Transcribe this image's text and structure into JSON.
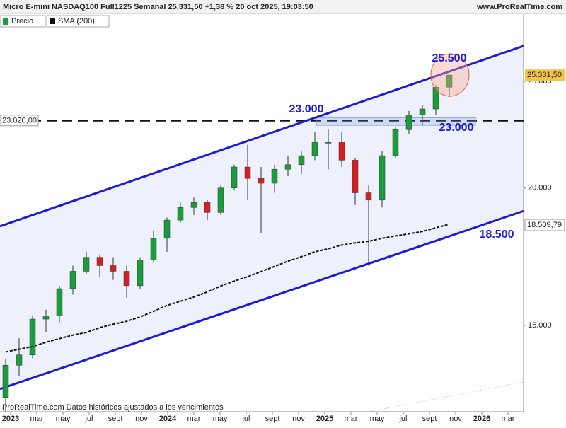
{
  "header": {
    "title": "Micro E-mini NASDAQ100 Full1225 Semanal 25.331,50 +1,38 % 20 oct 2025, 19:03:50",
    "site": "www.ProRealTime.com"
  },
  "legend": [
    "Precio",
    "SMA (200)"
  ],
  "footer": "ProRealTime.com  Datos históricos ajustados a los vencimientos",
  "chart_data": {
    "type": "candlestick",
    "log_scale": true,
    "ylim": [
      12520,
      28780
    ],
    "yticks": [
      {
        "value": 25000,
        "label": "25.000"
      },
      {
        "value": 20000,
        "label": "20.000"
      },
      {
        "value": 15000,
        "label": "15.000"
      }
    ],
    "x_tick_labels": [
      "2023",
      "mar",
      "may",
      "jul",
      "sept",
      "nov",
      "2024",
      "mar",
      "may",
      "jul",
      "sept",
      "nov",
      "2025",
      "mar",
      "may",
      "jul",
      "sept",
      "nov",
      "2026",
      "mar"
    ],
    "up_color": "#1a9c3a",
    "down_color": "#d42020",
    "candles": [
      [
        12900,
        14000,
        12500,
        13800
      ],
      [
        13800,
        14600,
        13500,
        14100
      ],
      [
        14100,
        15300,
        14000,
        15200
      ],
      [
        15200,
        15500,
        14800,
        15300
      ],
      [
        15300,
        16300,
        15100,
        16200
      ],
      [
        16200,
        17000,
        16000,
        16800
      ],
      [
        16800,
        17500,
        16700,
        17300
      ],
      [
        17300,
        17400,
        16600,
        17000
      ],
      [
        17000,
        17300,
        16500,
        16800
      ],
      [
        16800,
        17000,
        15900,
        16300
      ],
      [
        16300,
        17300,
        16200,
        17200
      ],
      [
        17200,
        18300,
        17100,
        18000
      ],
      [
        18000,
        18800,
        17500,
        18700
      ],
      [
        18700,
        19400,
        18600,
        19200
      ],
      [
        19200,
        19600,
        18900,
        19400
      ],
      [
        19400,
        19500,
        18700,
        19000
      ],
      [
        19000,
        20100,
        18900,
        20000
      ],
      [
        20000,
        21000,
        19900,
        20900
      ],
      [
        20900,
        21900,
        19500,
        20400
      ],
      [
        20400,
        20900,
        18200,
        20200
      ],
      [
        20200,
        21000,
        19800,
        20800
      ],
      [
        20800,
        21400,
        20500,
        21000
      ],
      [
        21000,
        21600,
        20600,
        21400
      ],
      [
        21400,
        22500,
        21200,
        22000
      ],
      [
        22000,
        22600,
        20800,
        22000
      ],
      [
        22000,
        22500,
        20900,
        21200
      ],
      [
        21200,
        21300,
        19300,
        19800
      ],
      [
        19800,
        20100,
        17000,
        19500
      ],
      [
        19500,
        21600,
        19200,
        21400
      ],
      [
        21400,
        22700,
        21300,
        22600
      ],
      [
        22600,
        23500,
        22400,
        23300
      ],
      [
        23300,
        23800,
        22800,
        23600
      ],
      [
        23600,
        24800,
        23300,
        24700
      ],
      [
        24700,
        25400,
        24200,
        25330
      ]
    ],
    "sma": {
      "name": "SMA (200)",
      "color": "#111",
      "values": [
        14190,
        14270,
        14350,
        14480,
        14590,
        14700,
        14780,
        14930,
        15040,
        15130,
        15270,
        15450,
        15640,
        15780,
        15920,
        16090,
        16290,
        16460,
        16610,
        16790,
        16970,
        17160,
        17320,
        17500,
        17610,
        17750,
        17830,
        17890,
        18000,
        18090,
        18170,
        18260,
        18400,
        18540
      ]
    },
    "channel": {
      "color": "#1a1adc",
      "upper": [
        18460,
        26930
      ],
      "lower": [
        13130,
        19060
      ]
    },
    "support": {
      "value": 23020,
      "label": "23.020,00"
    },
    "zone": [
      22810,
      23180
    ],
    "last_price": {
      "value": 25331.5,
      "label": "25.331,50"
    },
    "sma_last": {
      "value": 18509.79,
      "label": "18.509,79"
    },
    "annotations": [
      "25.500",
      "23.000",
      "23.000",
      "18.500"
    ]
  }
}
